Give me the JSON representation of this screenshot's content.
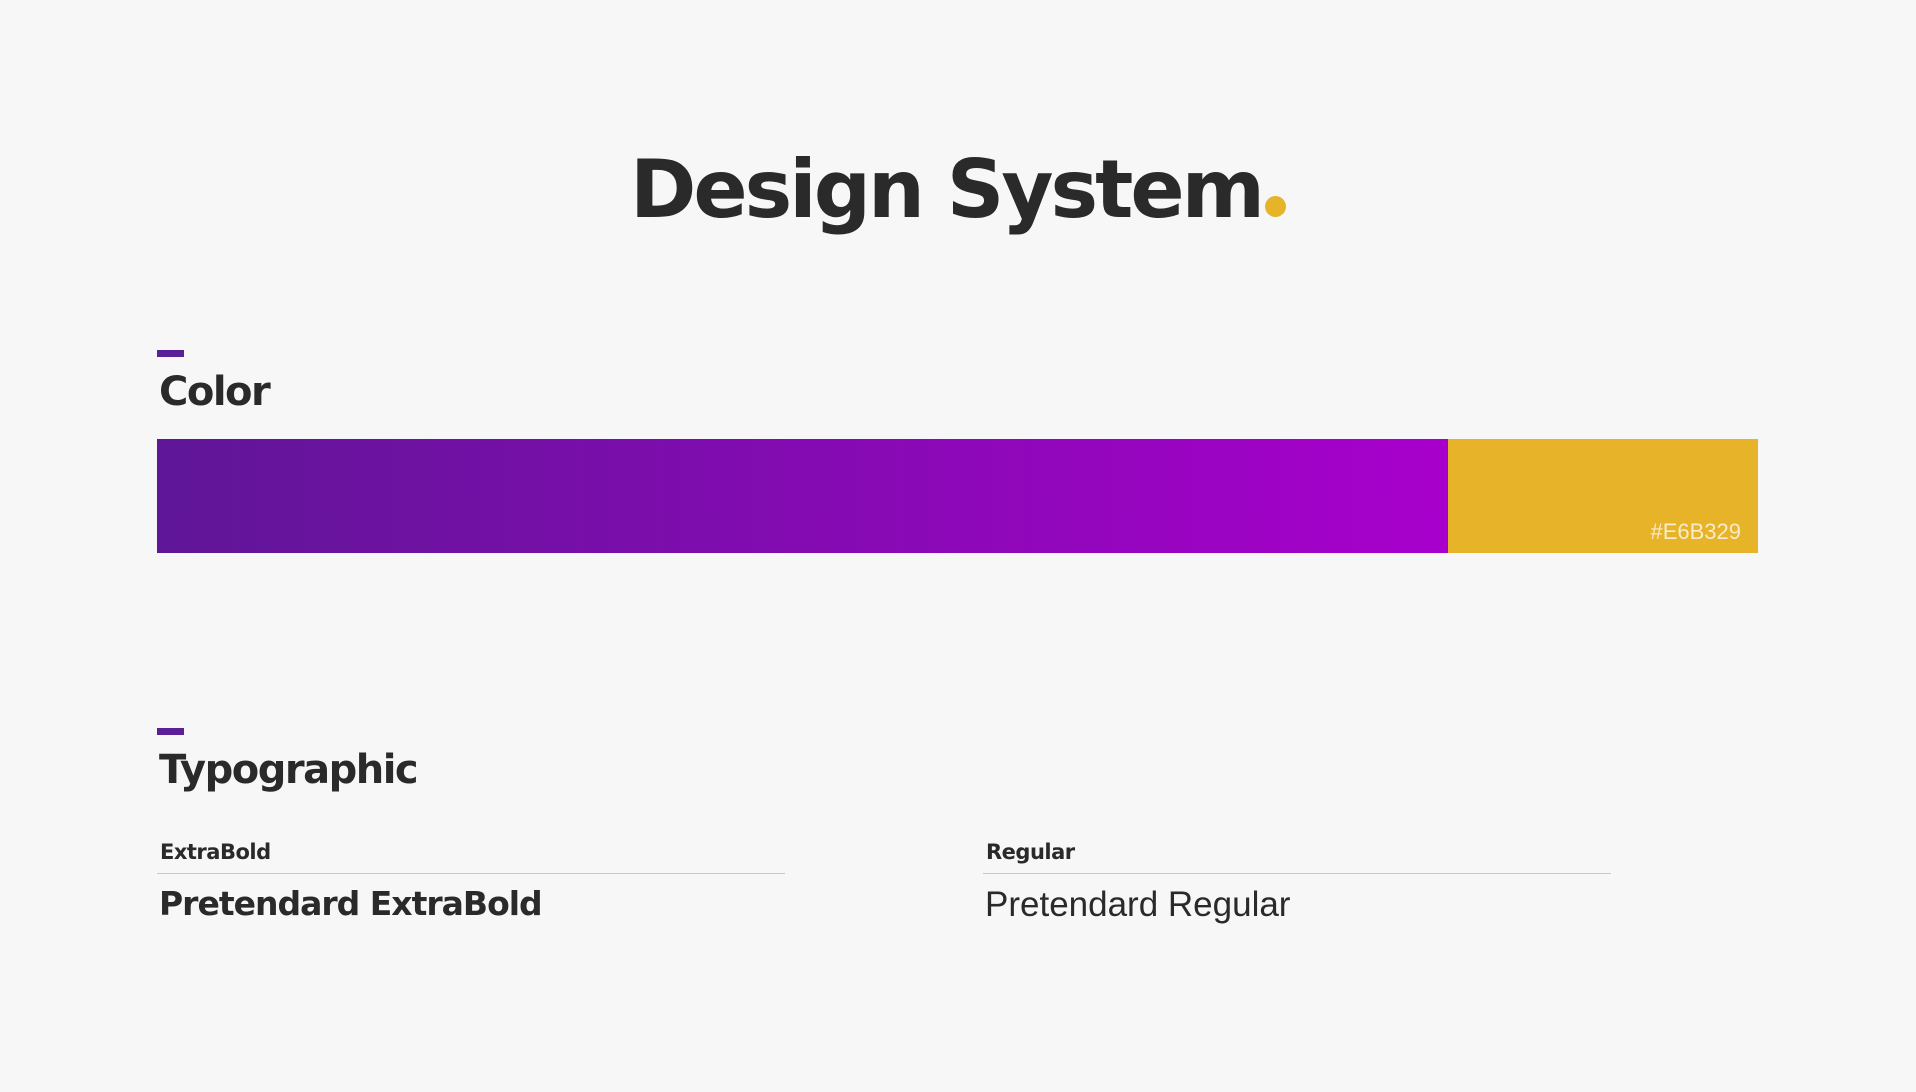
{
  "title": {
    "text": "Design System",
    "dot_color": "#E6B329"
  },
  "sections": {
    "color": {
      "heading": "Color",
      "accent_color": "#5B1F97",
      "swatches": [
        {
          "type": "gradient",
          "from": "#5F1697",
          "to": "#A800CC"
        },
        {
          "type": "solid",
          "hex": "#E6B329",
          "label": "#E6B329"
        }
      ]
    },
    "typographic": {
      "heading": "Typographic",
      "samples": [
        {
          "weight_label": "ExtraBold",
          "sample_text": "Pretendard ExtraBold"
        },
        {
          "weight_label": "Regular",
          "sample_text": "Pretendard Regular"
        }
      ]
    }
  }
}
